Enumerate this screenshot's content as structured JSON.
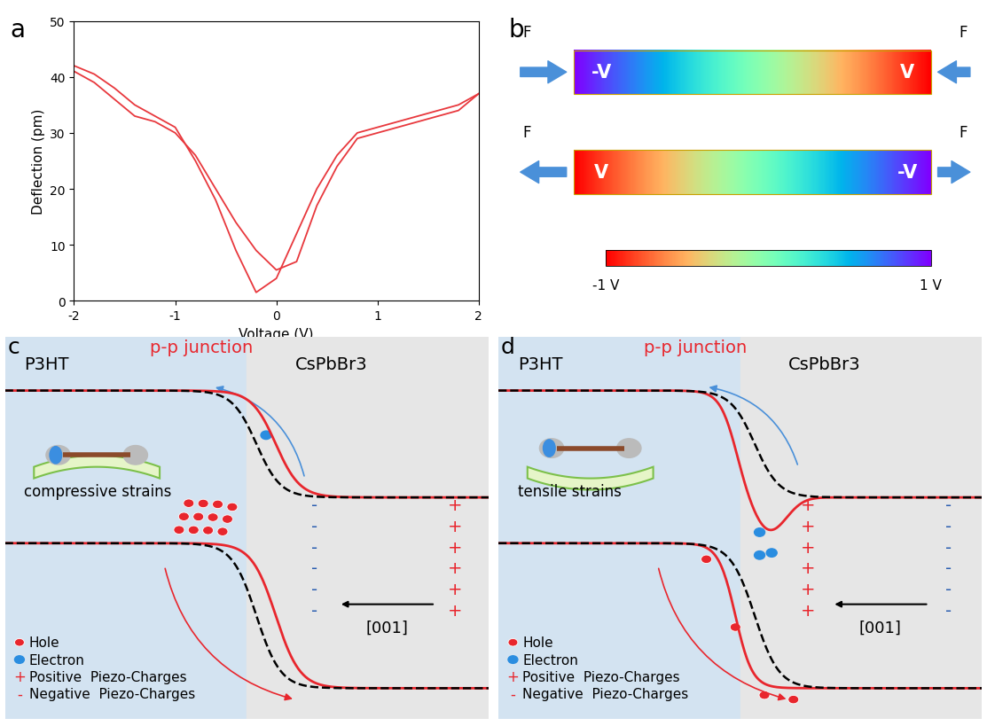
{
  "panel_labels": {
    "a": "a",
    "b": "b",
    "c": "c",
    "d": "d"
  },
  "chart_data": {
    "type": "line",
    "x_label": "Voltage (V)",
    "y_label": "Deflection (pm)",
    "x": [
      -2.0,
      -1.8,
      -1.6,
      -1.4,
      -1.2,
      -1.0,
      -0.8,
      -0.6,
      -0.4,
      -0.2,
      0.0,
      0.2,
      0.4,
      0.6,
      0.8,
      1.0,
      1.2,
      1.4,
      1.6,
      1.8,
      2.0
    ],
    "series": [
      {
        "color": "#e8383d",
        "values": [
          42,
          40.5,
          38,
          35,
          33,
          31,
          25,
          18,
          9,
          1.5,
          4,
          12,
          20,
          26,
          30,
          31,
          32,
          33,
          34,
          35,
          37
        ]
      },
      {
        "color": "#e8383d",
        "values": [
          41,
          39,
          36,
          33,
          32,
          30,
          26,
          20,
          14,
          9,
          5.5,
          7,
          17,
          24,
          29,
          30,
          31,
          32,
          33,
          34,
          37
        ]
      }
    ],
    "xlim": [
      -2,
      2
    ],
    "ylim": [
      0,
      50
    ],
    "xticks": [
      -2,
      -1,
      0,
      1,
      2
    ],
    "yticks": [
      0,
      10,
      20,
      30,
      40,
      50
    ]
  },
  "simulation": {
    "force_label": "F",
    "bars": [
      {
        "left_label": "-V",
        "right_label": "V",
        "potential": [
          1,
          -1
        ]
      },
      {
        "left_label": "V",
        "right_label": "-V",
        "potential": [
          -1,
          1
        ]
      }
    ],
    "colorbar": {
      "range": [
        -1,
        1
      ],
      "ticks": [
        {
          "value": -1,
          "label": "-1 V"
        },
        {
          "value": 1,
          "label": "1 V"
        }
      ]
    }
  },
  "band_diagrams": [
    {
      "left_material": "P3HT",
      "right_material": "CsPbBr3",
      "junction": "p-p junction",
      "strain_label": "compressive strains",
      "direction": "[001]",
      "left_sign": "-",
      "right_sign": "+",
      "sign_count": 6,
      "holes": 12,
      "electrons": 1
    },
    {
      "left_material": "P3HT",
      "right_material": "CsPbBr3",
      "junction": "p-p junction",
      "strain_label": "tensile strains",
      "direction": "[001]",
      "left_sign": "+",
      "right_sign": "-",
      "sign_count": 6,
      "holes": 4,
      "electrons": 3
    }
  ],
  "legend": {
    "carriers": [
      "Hole",
      "Electron"
    ],
    "piezo": [
      {
        "sign": "+",
        "text": "Positive  Piezo-Charges"
      },
      {
        "sign": "-",
        "text": "Negative  Piezo-Charges"
      }
    ]
  }
}
